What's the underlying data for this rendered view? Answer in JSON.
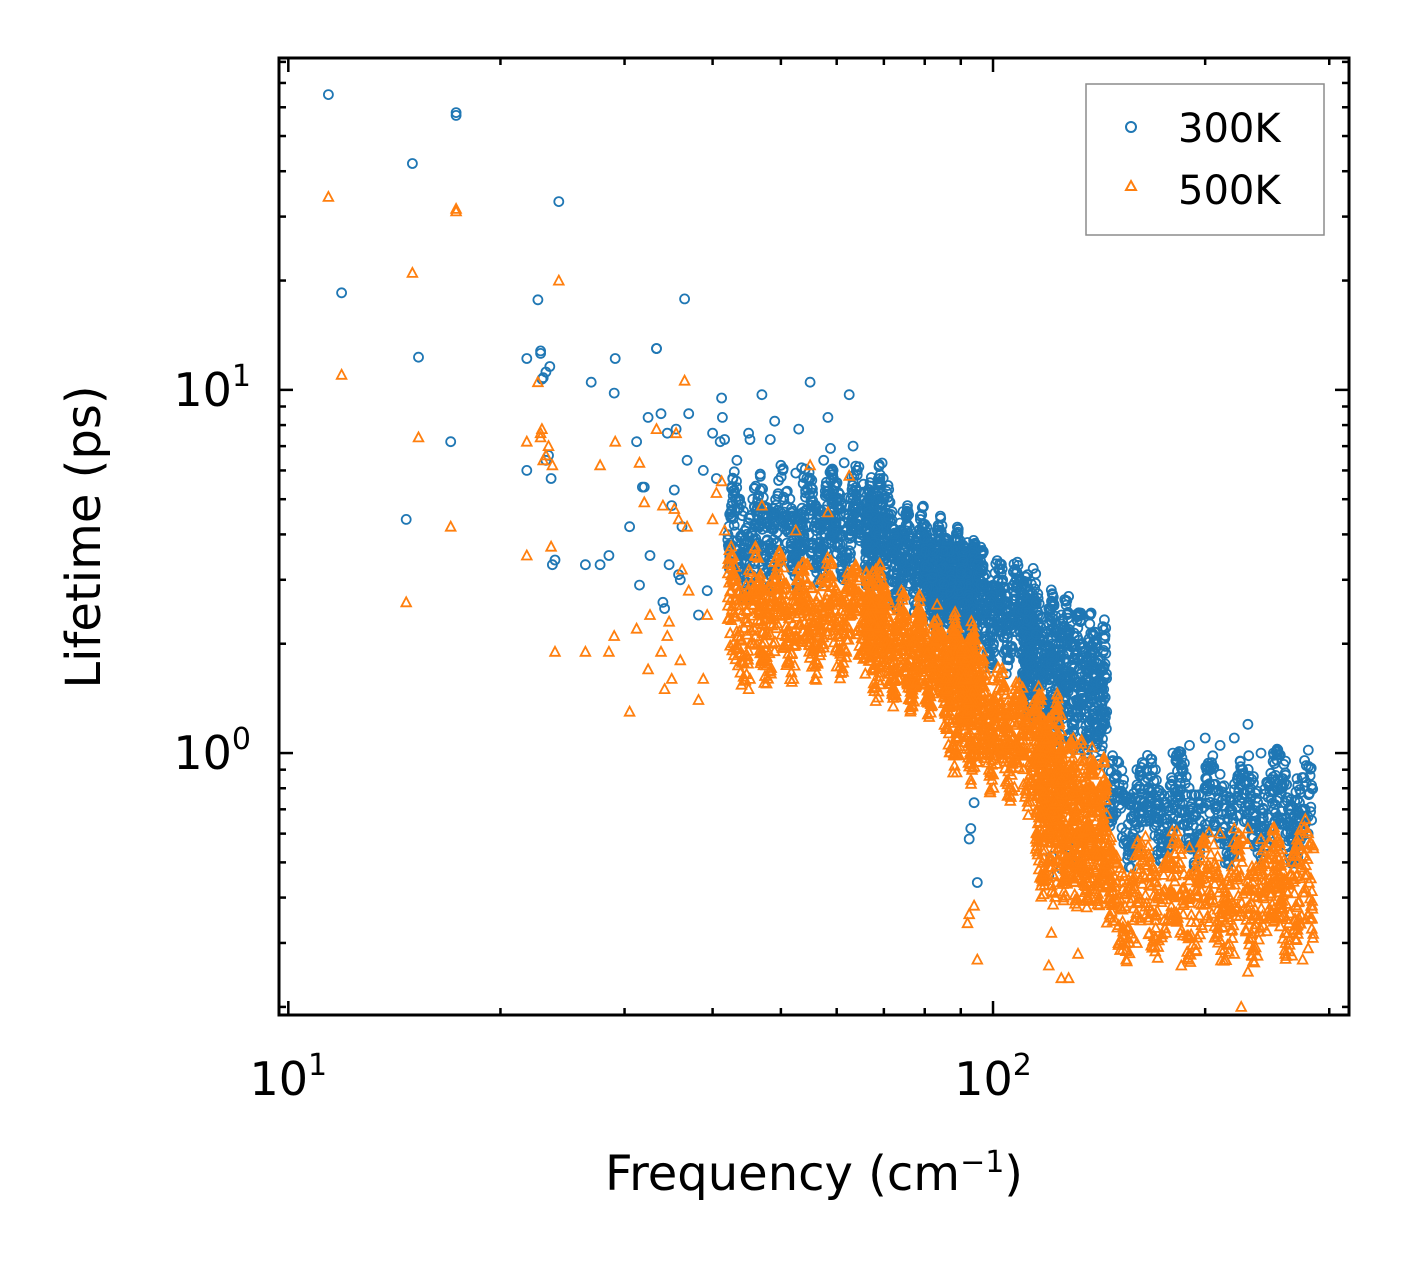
{
  "chart_data": {
    "type": "scatter",
    "title": "",
    "xlabel": "Frequency (cm",
    "xlabel_sup": "−1",
    "xlabel_close": ")",
    "ylabel": "Lifetime (ps)",
    "x_scale": "log",
    "y_scale": "log",
    "xlim": [
      9.7,
      320
    ],
    "ylim": [
      0.19,
      82
    ],
    "x_ticks": [
      {
        "value": 10,
        "base": "10",
        "exp": "1"
      },
      {
        "value": 100,
        "base": "10",
        "exp": "2"
      }
    ],
    "y_ticks": [
      {
        "value": 1,
        "base": "10",
        "exp": "0"
      },
      {
        "value": 10,
        "base": "10",
        "exp": "1"
      }
    ],
    "legend_position": "top-right",
    "series": [
      {
        "name": "300K",
        "color": "#1f77b4",
        "marker": "circle",
        "points": [
          [
            11.4,
            65
          ],
          [
            11.9,
            18.5
          ],
          [
            14.7,
            4.4
          ],
          [
            15.0,
            42
          ],
          [
            15.3,
            12.3
          ],
          [
            17.0,
            7.2
          ],
          [
            17.3,
            57
          ],
          [
            17.3,
            58
          ],
          [
            21.8,
            12.2
          ],
          [
            21.8,
            6.0
          ],
          [
            22.6,
            17.7
          ],
          [
            22.8,
            12.8
          ],
          [
            22.8,
            12.6
          ],
          [
            22.9,
            10.7
          ],
          [
            23.0,
            10.8
          ],
          [
            23.2,
            11.2
          ],
          [
            23.2,
            6.4
          ],
          [
            23.4,
            6.6
          ],
          [
            23.5,
            11.6
          ],
          [
            23.6,
            5.7
          ],
          [
            23.7,
            3.3
          ],
          [
            23.9,
            3.4
          ],
          [
            24.2,
            33
          ],
          [
            26.4,
            3.3
          ],
          [
            26.9,
            10.5
          ],
          [
            27.7,
            3.3
          ],
          [
            28.5,
            3.5
          ],
          [
            29.0,
            9.8
          ],
          [
            29.1,
            12.2
          ],
          [
            30.5,
            4.2
          ],
          [
            31.2,
            7.2
          ],
          [
            31.5,
            2.9
          ],
          [
            31.8,
            5.4
          ],
          [
            32.0,
            5.4
          ],
          [
            32.4,
            8.4
          ],
          [
            32.6,
            3.5
          ],
          [
            33.3,
            13
          ],
          [
            33.3,
            13
          ],
          [
            33.8,
            8.6
          ],
          [
            34.0,
            2.6
          ],
          [
            34.2,
            2.5
          ],
          [
            34.5,
            7.6
          ],
          [
            34.7,
            3.3
          ],
          [
            35.0,
            4.8
          ],
          [
            35.3,
            5.3
          ],
          [
            35.5,
            7.8
          ],
          [
            35.8,
            3.1
          ],
          [
            36.0,
            3.0
          ],
          [
            36.2,
            4.2
          ],
          [
            36.5,
            17.8
          ],
          [
            36.8,
            6.4
          ],
          [
            37.0,
            8.6
          ],
          [
            38.2,
            2.4
          ],
          [
            38.8,
            6.0
          ],
          [
            39.3,
            2.8
          ],
          [
            40.0,
            7.6
          ],
          [
            40.5,
            5.7
          ],
          [
            41.0,
            7.2
          ],
          [
            41.2,
            9.5
          ],
          [
            41.3,
            8.4
          ],
          [
            41.6,
            7.3
          ],
          [
            43.3,
            6.4
          ],
          [
            45.0,
            7.6
          ],
          [
            45.2,
            7.3
          ],
          [
            47.0,
            9.7
          ],
          [
            48.3,
            7.3
          ],
          [
            49.0,
            8.2
          ],
          [
            50.0,
            6.2
          ],
          [
            52.5,
            5.9
          ],
          [
            53.0,
            7.8
          ],
          [
            53.5,
            6.1
          ],
          [
            55.0,
            10.5
          ],
          [
            57.5,
            6.4
          ],
          [
            58.3,
            8.4
          ],
          [
            58.8,
            6.9
          ],
          [
            59.3,
            6.0
          ],
          [
            61.5,
            6.3
          ],
          [
            62.5,
            9.7
          ],
          [
            63.3,
            7.0
          ],
          [
            64.0,
            6.0
          ],
          [
            65.5,
            5.5
          ],
          [
            68.0,
            4.4
          ],
          [
            75.0,
            4.1
          ],
          [
            80.0,
            3.9
          ],
          [
            85.0,
            3.6
          ],
          [
            90.0,
            3.2
          ],
          [
            92.0,
            3.8
          ],
          [
            95.0,
            3.3
          ],
          [
            100.0,
            2.9
          ],
          [
            105.0,
            2.7
          ],
          [
            110.0,
            2.6
          ],
          [
            112.0,
            3.1
          ],
          [
            115.0,
            2.6
          ],
          [
            120.0,
            2.5
          ],
          [
            125.0,
            2.4
          ],
          [
            128.0,
            2.7
          ],
          [
            133.0,
            2.3
          ],
          [
            137.0,
            2.4
          ],
          [
            140.0,
            2.0
          ],
          [
            142.0,
            1.8
          ],
          [
            145.0,
            1.3
          ],
          [
            150.0,
            0.95
          ],
          [
            160.0,
            0.9
          ],
          [
            170.0,
            0.9
          ],
          [
            180.0,
            1.0
          ],
          [
            190.0,
            1.05
          ],
          [
            200.0,
            1.1
          ],
          [
            210.0,
            1.05
          ],
          [
            220.0,
            1.1
          ],
          [
            230.0,
            1.2
          ],
          [
            240.0,
            1.0
          ],
          [
            250.0,
            1.0
          ],
          [
            260.0,
            0.95
          ],
          [
            270.0,
            0.85
          ],
          [
            280.0,
            0.6
          ],
          [
            92.5,
            0.58
          ],
          [
            93.0,
            0.62
          ],
          [
            94.0,
            0.73
          ],
          [
            95.0,
            0.44
          ],
          [
            120.0,
            0.46
          ],
          [
            121.0,
            0.52
          ],
          [
            125.0,
            0.48
          ],
          [
            128.0,
            0.55
          ],
          [
            132.0,
            0.5
          ]
        ],
        "bands": [
          {
            "x": [
              42,
              70
            ],
            "y_lo": [
              2.9,
              3.6
            ],
            "y_hi": [
              5.2,
              5.6
            ]
          },
          {
            "x": [
              66,
              95
            ],
            "y_lo": [
              2.8,
              2.5
            ],
            "y_hi": [
              5.2,
              3.4
            ]
          },
          {
            "x": [
              80,
              115
            ],
            "y_lo": [
              2.4,
              1.7
            ],
            "y_hi": [
              3.6,
              2.9
            ]
          },
          {
            "x": [
              110,
              145
            ],
            "y_lo": [
              1.3,
              1.0
            ],
            "y_hi": [
              2.7,
              2.1
            ]
          },
          {
            "x": [
              145,
              285
            ],
            "y_lo": [
              0.55,
              0.56
            ],
            "y_hi": [
              0.88,
              0.9
            ]
          }
        ]
      },
      {
        "name": "500K",
        "color": "#ff7f0e",
        "marker": "triangle",
        "points": [
          [
            11.4,
            34
          ],
          [
            11.9,
            11
          ],
          [
            14.7,
            2.6
          ],
          [
            15.0,
            21
          ],
          [
            15.3,
            7.4
          ],
          [
            17.0,
            4.2
          ],
          [
            17.3,
            31
          ],
          [
            17.3,
            31.5
          ],
          [
            21.8,
            7.2
          ],
          [
            21.8,
            3.5
          ],
          [
            22.6,
            10.5
          ],
          [
            22.8,
            7.6
          ],
          [
            22.8,
            7.4
          ],
          [
            22.9,
            7.8
          ],
          [
            23.0,
            6.4
          ],
          [
            23.2,
            6.6
          ],
          [
            23.4,
            7.0
          ],
          [
            23.6,
            3.7
          ],
          [
            23.7,
            6.2
          ],
          [
            23.9,
            1.9
          ],
          [
            24.2,
            20
          ],
          [
            26.4,
            1.9
          ],
          [
            27.7,
            6.2
          ],
          [
            28.5,
            1.9
          ],
          [
            29.0,
            2.1
          ],
          [
            29.1,
            7.2
          ],
          [
            30.5,
            1.3
          ],
          [
            31.2,
            2.2
          ],
          [
            31.5,
            6.3
          ],
          [
            32.0,
            4.9
          ],
          [
            32.4,
            1.7
          ],
          [
            32.6,
            2.4
          ],
          [
            33.3,
            7.8
          ],
          [
            33.8,
            1.9
          ],
          [
            34.0,
            4.8
          ],
          [
            34.2,
            1.5
          ],
          [
            34.5,
            2.1
          ],
          [
            34.7,
            2.3
          ],
          [
            35.0,
            1.6
          ],
          [
            35.3,
            4.7
          ],
          [
            35.5,
            7.6
          ],
          [
            35.8,
            4.4
          ],
          [
            36.0,
            1.8
          ],
          [
            36.2,
            3.2
          ],
          [
            36.5,
            10.6
          ],
          [
            36.8,
            4.2
          ],
          [
            37.0,
            2.8
          ],
          [
            38.2,
            1.4
          ],
          [
            38.8,
            1.6
          ],
          [
            39.3,
            2.4
          ],
          [
            40.0,
            4.4
          ],
          [
            40.5,
            5.2
          ],
          [
            41.2,
            5.6
          ],
          [
            41.6,
            4.1
          ],
          [
            45.0,
            1.5
          ],
          [
            45.2,
            1.6
          ],
          [
            47.0,
            4.8
          ],
          [
            52.5,
            4.1
          ],
          [
            55.0,
            6.2
          ],
          [
            58.3,
            4.6
          ],
          [
            62.5,
            5.8
          ],
          [
            68.0,
            2.8
          ],
          [
            75.0,
            2.4
          ],
          [
            80.0,
            2.2
          ],
          [
            85.0,
            2.1
          ],
          [
            90.0,
            1.9
          ],
          [
            95.0,
            1.8
          ],
          [
            100.0,
            1.6
          ],
          [
            105.0,
            1.4
          ],
          [
            110.0,
            1.4
          ],
          [
            115.0,
            1.3
          ],
          [
            120.0,
            1.2
          ],
          [
            125.0,
            1.15
          ],
          [
            130.0,
            1.1
          ],
          [
            135.0,
            0.95
          ],
          [
            140.0,
            0.65
          ],
          [
            145.0,
            0.58
          ],
          [
            150.0,
            0.5
          ],
          [
            160.0,
            0.48
          ],
          [
            170.0,
            0.46
          ],
          [
            180.0,
            0.5
          ],
          [
            190.0,
            0.55
          ],
          [
            200.0,
            0.58
          ],
          [
            210.0,
            0.6
          ],
          [
            220.0,
            0.62
          ],
          [
            230.0,
            0.62
          ],
          [
            240.0,
            0.58
          ],
          [
            250.0,
            0.55
          ],
          [
            260.0,
            0.5
          ],
          [
            270.0,
            0.5
          ],
          [
            280.0,
            0.36
          ],
          [
            92.0,
            0.34
          ],
          [
            92.5,
            0.36
          ],
          [
            94.0,
            0.38
          ],
          [
            95.0,
            0.27
          ],
          [
            120.0,
            0.26
          ],
          [
            121.0,
            0.32
          ],
          [
            125.0,
            0.24
          ],
          [
            128.0,
            0.24
          ],
          [
            132.0,
            0.28
          ],
          [
            160.0,
            0.3
          ],
          [
            185.0,
            0.26
          ],
          [
            220.0,
            0.28
          ],
          [
            225.0,
            0.2
          ],
          [
            230.0,
            0.25
          ],
          [
            260.0,
            0.3
          ],
          [
            275.0,
            0.27
          ],
          [
            280.0,
            0.29
          ]
        ],
        "bands": [
          {
            "x": [
              42,
              70
            ],
            "y_lo": [
              1.7,
              1.9
            ],
            "y_hi": [
              3.3,
              3.0
            ]
          },
          {
            "x": [
              66,
              95
            ],
            "y_lo": [
              1.6,
              1.3
            ],
            "y_hi": [
              2.8,
              2.0
            ]
          },
          {
            "x": [
              85,
              125
            ],
            "y_lo": [
              1.0,
              0.7
            ],
            "y_hi": [
              1.9,
              1.3
            ]
          },
          {
            "x": [
              115,
              145
            ],
            "y_lo": [
              0.45,
              0.4
            ],
            "y_hi": [
              1.2,
              0.85
            ]
          },
          {
            "x": [
              145,
              285
            ],
            "y_lo": [
              0.3,
              0.3
            ],
            "y_hi": [
              0.52,
              0.58
            ]
          }
        ]
      }
    ]
  }
}
